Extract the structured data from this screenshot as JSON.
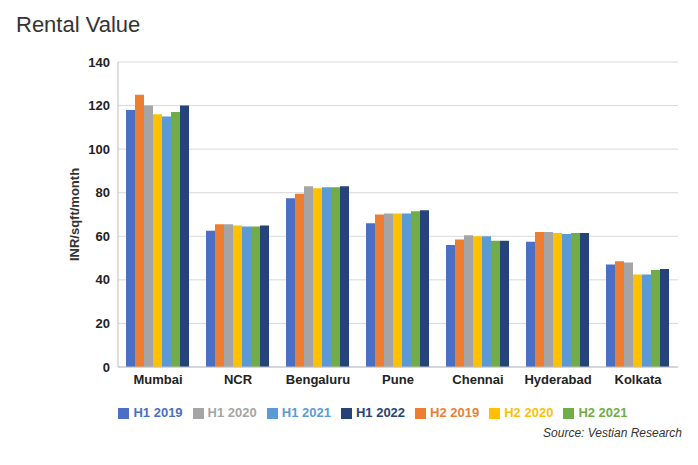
{
  "chart_data": {
    "type": "bar",
    "title": "Rental Value",
    "y_label": "INR/sqft/month",
    "source": "Source: Vestian Research",
    "categories": [
      "Mumbai",
      "NCR",
      "Bengaluru",
      "Pune",
      "Chennai",
      "Hyderabad",
      "Kolkata"
    ],
    "series": [
      {
        "name": "H1 2019",
        "color": "#4a6fc4",
        "values": [
          118,
          62.5,
          77.5,
          66,
          56,
          57.5,
          47
        ]
      },
      {
        "name": "H2 2019",
        "color": "#ed7d31",
        "values": [
          125,
          65.5,
          79.5,
          70,
          58.5,
          62,
          48.5
        ]
      },
      {
        "name": "H1 2020",
        "color": "#a5a5a5",
        "values": [
          120,
          65.5,
          83,
          70.5,
          60.5,
          62,
          48
        ]
      },
      {
        "name": "H2 2020",
        "color": "#ffc000",
        "values": [
          116,
          65,
          82,
          70.5,
          60,
          61.5,
          42.5
        ]
      },
      {
        "name": "H1 2021",
        "color": "#5b9bd5",
        "values": [
          115,
          64.5,
          82.5,
          70.5,
          60,
          61,
          42.5
        ]
      },
      {
        "name": "H2 2021",
        "color": "#70ad47",
        "values": [
          117,
          64.5,
          82.5,
          71.5,
          58,
          61.5,
          44.5
        ]
      },
      {
        "name": "H1 2022",
        "color": "#264478",
        "values": [
          120,
          65,
          83,
          72,
          58,
          61.5,
          45
        ]
      }
    ],
    "ylim": [
      0,
      140
    ],
    "yticks": [
      0,
      20,
      40,
      60,
      80,
      100,
      120,
      140
    ],
    "grid": true,
    "legend": "bottom"
  }
}
